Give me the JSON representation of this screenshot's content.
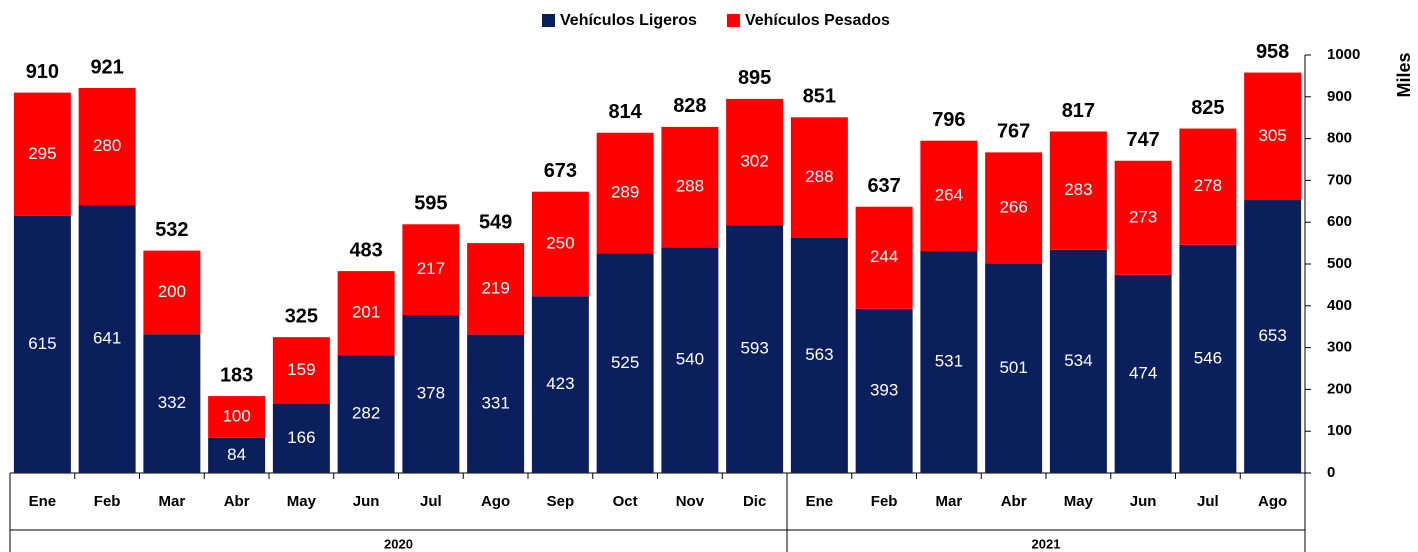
{
  "chart_data": {
    "type": "stacked_bar",
    "categories": [
      "Ene",
      "Feb",
      "Mar",
      "Abr",
      "May",
      "Jun",
      "Jul",
      "Ago",
      "Sep",
      "Oct",
      "Nov",
      "Dic",
      "Ene",
      "Feb",
      "Mar",
      "Abr",
      "May",
      "Jun",
      "Jul",
      "Ago"
    ],
    "category_groups": [
      {
        "label": "2020",
        "count": 12
      },
      {
        "label": "2021",
        "count": 8
      }
    ],
    "series": [
      {
        "name": "Vehículos Ligeros",
        "color": "#0b1f5c",
        "values": [
          615,
          641,
          332,
          84,
          166,
          282,
          378,
          331,
          423,
          525,
          540,
          593,
          563,
          393,
          531,
          501,
          534,
          474,
          546,
          653
        ]
      },
      {
        "name": "Vehículos Pesados",
        "color": "#ff0000",
        "values": [
          295,
          280,
          200,
          100,
          159,
          201,
          217,
          219,
          250,
          289,
          288,
          302,
          288,
          244,
          264,
          266,
          283,
          273,
          278,
          305
        ]
      }
    ],
    "totals": [
      910,
      921,
      532,
      183,
      325,
      483,
      595,
      549,
      673,
      814,
      828,
      895,
      851,
      637,
      796,
      767,
      817,
      747,
      825,
      958
    ],
    "y_axis_label": "Miles",
    "y_axis_side": "right",
    "ylim": [
      0,
      1000
    ],
    "yticks": [
      0,
      100,
      200,
      300,
      400,
      500,
      600,
      700,
      800,
      900,
      1000
    ]
  }
}
